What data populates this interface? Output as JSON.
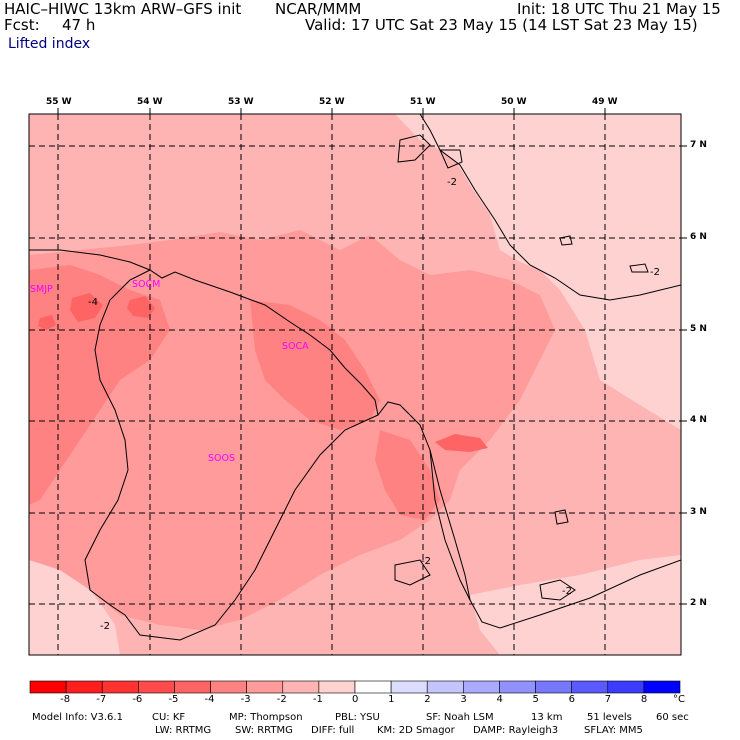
{
  "header": {
    "model": "HAIC–HIWC 13km ARW–GFS init",
    "org": "NCAR/MMM",
    "init": "Init: 18 UTC Thu 21 May 15",
    "fcst_label": "Fcst:",
    "fcst_value": "47 h",
    "valid": "Valid: 17 UTC Sat 23 May 15 (14 LST Sat 23 May 15)",
    "field": "Lifted index"
  },
  "map": {
    "lon_labels": [
      "55 W",
      "54 W",
      "53 W",
      "52 W",
      "51 W",
      "50 W",
      "49 W"
    ],
    "lat_labels": [
      "7 N",
      "6 N",
      "5 N",
      "4 N",
      "3 N",
      "2 N"
    ],
    "stations": [
      "SMJP",
      "SOCM",
      "SOCA",
      "SOOS"
    ],
    "contour_labels": [
      "-2",
      "-2",
      "-4",
      "-2",
      "-2",
      "-2"
    ],
    "colors": {
      "lvl_m1": "#ffd2d2",
      "lvl_m2": "#ffb4b4",
      "lvl_m3": "#ff9b9b",
      "lvl_m4": "#ff8282",
      "lvl_m5": "#ff6464",
      "coast": "#000000",
      "grid": "#000000"
    }
  },
  "colorbar": {
    "colors": [
      "#ff0000",
      "#ff1e1e",
      "#ff3232",
      "#ff4b4b",
      "#ff6464",
      "#ff8282",
      "#ff9b9b",
      "#ffb4b4",
      "#ffd2d2",
      "#ffffff",
      "#dcdcff",
      "#c4c4ff",
      "#aaaaff",
      "#9191ff",
      "#7878ff",
      "#5a5aff",
      "#3c3cff",
      "#0000ff"
    ],
    "tick_labels": [
      "-8",
      "-7",
      "-6",
      "-5",
      "-4",
      "-3",
      "-2",
      "-1",
      "0",
      "1",
      "2",
      "3",
      "4",
      "5",
      "6",
      "7",
      "8"
    ],
    "unit": "°C"
  },
  "footer": {
    "line1": [
      "Model Info: V3.6.1",
      "CU: KF",
      "MP: Thompson",
      "PBL: YSU",
      "SF: Noah LSM",
      "13 km",
      "51 levels",
      "60 sec"
    ],
    "line2": [
      "LW: RRTMG",
      "SW: RRTMG",
      "DIFF: full",
      "KM: 2D Smagor",
      "DAMP: Rayleigh3",
      "SFLAY: MM5"
    ]
  }
}
